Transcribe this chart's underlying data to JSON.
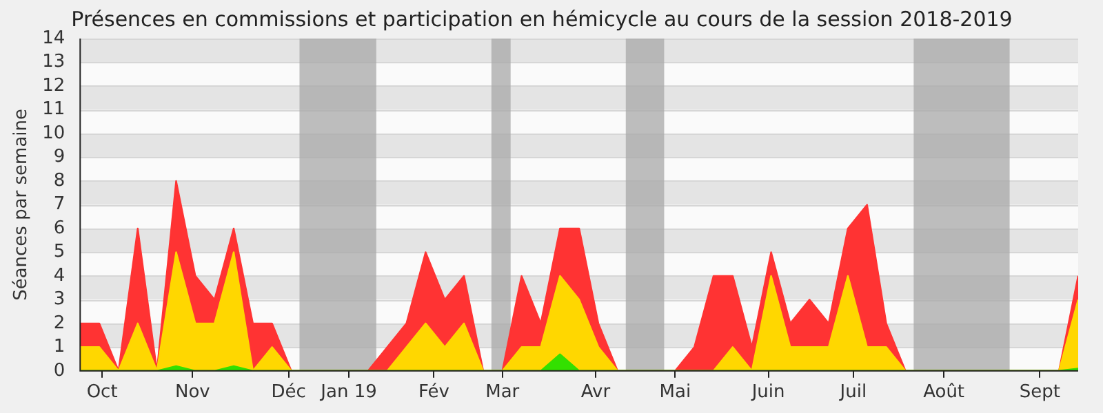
{
  "chart_data": {
    "type": "area",
    "title": "Présences en commissions et participation en hémicycle au cours de la session 2018-2019",
    "ylabel": "Séances par semaine",
    "stacked": true,
    "grid": true,
    "legend": false,
    "x": [
      "2018-10-01",
      "2018-10-08",
      "2018-10-15",
      "2018-10-22",
      "2018-10-29",
      "2018-11-05",
      "2018-11-12",
      "2018-11-19",
      "2018-11-26",
      "2018-12-03",
      "2018-12-10",
      "2018-12-17",
      "2018-12-24",
      "2018-12-31",
      "2019-01-07",
      "2019-01-14",
      "2019-01-21",
      "2019-01-28",
      "2019-02-04",
      "2019-02-11",
      "2019-02-18",
      "2019-02-25",
      "2019-03-04",
      "2019-03-11",
      "2019-03-18",
      "2019-03-25",
      "2019-04-01",
      "2019-04-08",
      "2019-04-15",
      "2019-04-22",
      "2019-04-29",
      "2019-05-06",
      "2019-05-13",
      "2019-05-20",
      "2019-05-27",
      "2019-06-03",
      "2019-06-10",
      "2019-06-17",
      "2019-06-24",
      "2019-07-01",
      "2019-07-08",
      "2019-07-15",
      "2019-07-22",
      "2019-07-29",
      "2019-08-05",
      "2019-08-12",
      "2019-08-19",
      "2019-08-26",
      "2019-09-02",
      "2019-09-09",
      "2019-09-16",
      "2019-09-23",
      "2019-09-30"
    ],
    "xlim": [
      "2018-10-01",
      "2019-09-30"
    ],
    "xticks": [
      {
        "value": "2018-10-09",
        "label": "Oct"
      },
      {
        "value": "2018-11-11",
        "label": "Nov"
      },
      {
        "value": "2018-12-16",
        "label": "Déc"
      },
      {
        "value": "2019-01-07",
        "label": "Jan 19"
      },
      {
        "value": "2019-02-07",
        "label": "Fév"
      },
      {
        "value": "2019-03-04",
        "label": "Mar"
      },
      {
        "value": "2019-04-07",
        "label": "Avr"
      },
      {
        "value": "2019-05-06",
        "label": "Mai"
      },
      {
        "value": "2019-06-09",
        "label": "Juin"
      },
      {
        "value": "2019-07-10",
        "label": "Juil"
      },
      {
        "value": "2019-08-12",
        "label": "Août"
      },
      {
        "value": "2019-09-16",
        "label": "Sept"
      }
    ],
    "ylim": [
      0,
      14
    ],
    "yticks": [
      0,
      1,
      2,
      3,
      4,
      5,
      6,
      7,
      8,
      9,
      10,
      11,
      12,
      13,
      14
    ],
    "series": [
      {
        "color": "#33e000",
        "values": [
          0,
          0,
          0,
          0,
          0,
          0.2,
          0,
          0,
          0.2,
          0,
          0,
          0,
          0,
          0,
          0,
          0,
          0,
          0,
          0,
          0,
          0,
          0,
          0,
          0,
          0,
          0.7,
          0,
          0,
          0,
          0,
          0,
          0,
          0,
          0,
          0,
          0,
          0,
          0,
          0,
          0,
          0,
          0,
          0,
          0,
          0,
          0,
          0,
          0,
          0,
          0,
          0,
          0,
          0.1
        ]
      },
      {
        "color": "#ffd700",
        "values": [
          1,
          1,
          0,
          2,
          0,
          4.8,
          2,
          2,
          4.8,
          0,
          1,
          0,
          0,
          0,
          0,
          0,
          0,
          1,
          2,
          1,
          2,
          0,
          0,
          1,
          1,
          3.3,
          3,
          1,
          0,
          0,
          0,
          0,
          0,
          0,
          1,
          0,
          4,
          1,
          1,
          1,
          4,
          1,
          1,
          0,
          0,
          0,
          0,
          0,
          0,
          0,
          0,
          0,
          2.9
        ]
      },
      {
        "color": "#ff3333",
        "values": [
          1,
          1,
          0,
          4,
          0,
          3,
          2,
          1,
          1,
          2,
          1,
          0,
          0,
          0,
          0,
          0,
          1,
          1,
          3,
          2,
          2,
          0,
          0,
          3,
          1,
          2,
          3,
          1,
          0,
          0,
          0,
          0,
          1,
          4,
          3,
          1,
          1,
          1,
          2,
          1,
          2,
          6,
          1,
          0,
          0,
          0,
          0,
          0,
          0,
          0,
          0,
          0,
          1
        ]
      }
    ],
    "bands": [
      {
        "axis": "x",
        "from": "2018-12-20",
        "to": "2019-01-17",
        "color": "#a8a8a8"
      },
      {
        "axis": "x",
        "from": "2019-02-28",
        "to": "2019-03-07",
        "color": "#a8a8a8"
      },
      {
        "axis": "x",
        "from": "2019-04-18",
        "to": "2019-05-02",
        "color": "#a8a8a8"
      },
      {
        "axis": "x",
        "from": "2019-08-01",
        "to": "2019-09-05",
        "color": "#a8a8a8"
      }
    ]
  }
}
